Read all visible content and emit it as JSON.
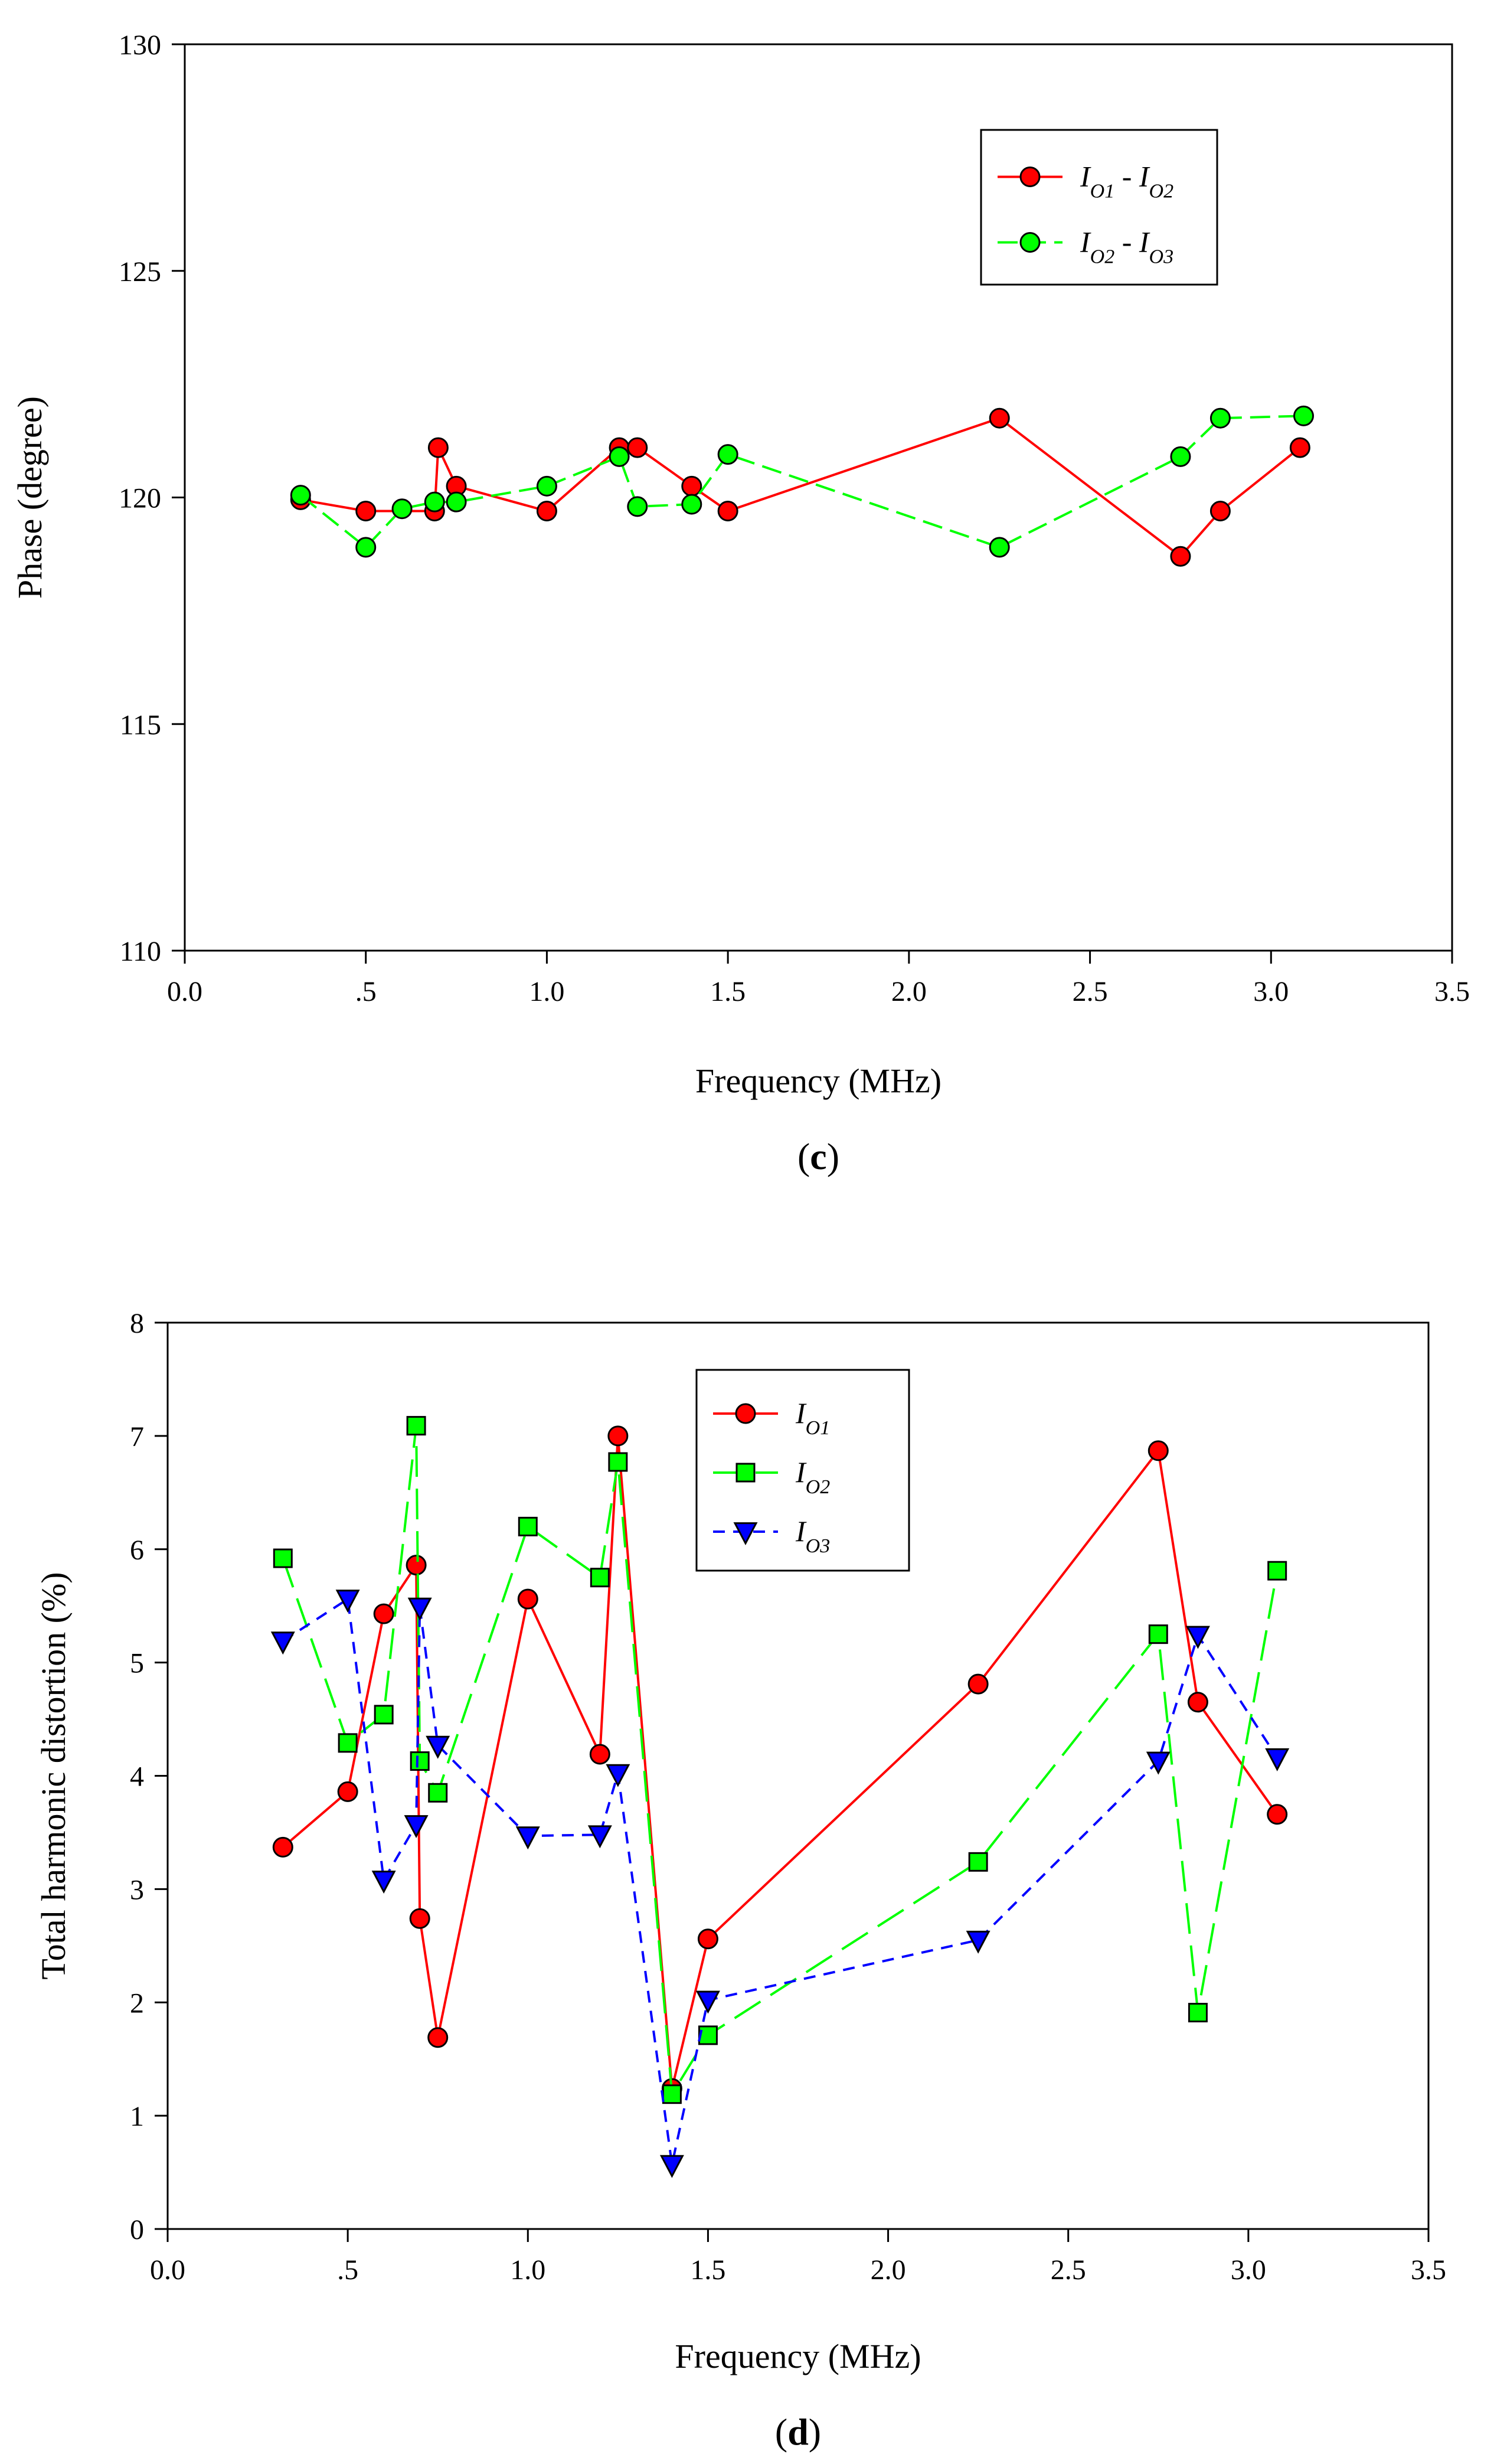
{
  "chart_data": [
    {
      "type": "line",
      "panel_label": "c",
      "xlabel": "Frequency (MHz)",
      "ylabel": "Phase (degree)",
      "xlim": [
        0,
        3.5
      ],
      "ylim": [
        110,
        130
      ],
      "xticks": [
        0,
        0.5,
        1,
        1.5,
        2,
        2.5,
        3,
        3.5
      ],
      "xtick_labels": [
        "0.0",
        ".5",
        "1.0",
        "1.5",
        "2.0",
        "2.5",
        "3.0",
        "3.5"
      ],
      "yticks": [
        110,
        115,
        120,
        125,
        130
      ],
      "ytick_labels": [
        "110",
        "115",
        "120",
        "125",
        "130"
      ],
      "grid": false,
      "legend_position": "top-right",
      "series": [
        {
          "name_main": "I",
          "name_sub": "O1",
          "name_sep": " - ",
          "name2_main": "I",
          "name2_sub": "O2",
          "color": "#ff0000",
          "marker": "circle",
          "dash": "solid",
          "x": [
            0.32,
            0.5,
            0.69,
            0.7,
            0.75,
            1.0,
            1.2,
            1.25,
            1.4,
            1.5,
            2.25,
            2.75,
            2.86,
            3.08
          ],
          "y": [
            119.95,
            119.7,
            119.7,
            121.1,
            120.25,
            119.7,
            121.1,
            121.1,
            120.25,
            119.7,
            121.75,
            118.7,
            119.7,
            121.1
          ]
        },
        {
          "name_main": "I",
          "name_sub": "O2",
          "name_sep": " - ",
          "name2_main": "I",
          "name2_sub": "O3",
          "color": "#00ff00",
          "marker": "circle",
          "dash": "dash",
          "x": [
            0.32,
            0.5,
            0.6,
            0.69,
            0.75,
            1.0,
            1.2,
            1.25,
            1.4,
            1.5,
            2.25,
            2.75,
            2.86,
            3.09
          ],
          "y": [
            120.05,
            118.9,
            119.75,
            119.9,
            119.9,
            120.25,
            120.9,
            119.8,
            119.85,
            120.95,
            118.9,
            120.9,
            121.75,
            121.8
          ]
        }
      ]
    },
    {
      "type": "line",
      "panel_label": "d",
      "xlabel": "Frequency (MHz)",
      "ylabel": "Total harmonic distortion (%)",
      "xlim": [
        0,
        3.5
      ],
      "ylim": [
        0,
        8
      ],
      "xticks": [
        0,
        0.5,
        1,
        1.5,
        2,
        2.5,
        3,
        3.5
      ],
      "xtick_labels": [
        "0.0",
        ".5",
        "1.0",
        "1.5",
        "2.0",
        "2.5",
        "3.0",
        "3.5"
      ],
      "yticks": [
        0,
        1,
        2,
        3,
        4,
        5,
        6,
        7,
        8
      ],
      "ytick_labels": [
        "0",
        "1",
        "2",
        "3",
        "4",
        "5",
        "6",
        "7",
        "8"
      ],
      "grid": false,
      "legend_position": "top-center",
      "series": [
        {
          "name_main": "I",
          "name_sub": "O1",
          "color": "#ff0000",
          "marker": "circle",
          "dash": "solid",
          "x": [
            0.32,
            0.5,
            0.6,
            0.69,
            0.7,
            0.75,
            1.0,
            1.2,
            1.25,
            1.4,
            1.5,
            2.25,
            2.75,
            2.86,
            3.08
          ],
          "y": [
            3.37,
            3.86,
            5.43,
            5.86,
            2.74,
            1.69,
            5.56,
            4.19,
            7.0,
            1.24,
            2.56,
            4.81,
            6.87,
            4.65,
            3.66
          ]
        },
        {
          "name_main": "I",
          "name_sub": "O2",
          "color": "#00ff00",
          "marker": "square",
          "dash": "longdash",
          "x": [
            0.32,
            0.5,
            0.6,
            0.69,
            0.7,
            0.75,
            1.0,
            1.2,
            1.25,
            1.4,
            1.5,
            2.25,
            2.75,
            2.86,
            3.08
          ],
          "y": [
            5.92,
            4.29,
            4.54,
            7.09,
            4.13,
            3.85,
            6.2,
            5.75,
            6.77,
            1.19,
            1.71,
            3.24,
            5.25,
            1.91,
            5.81
          ]
        },
        {
          "name_main": "I",
          "name_sub": "O3",
          "color": "#0000ff",
          "marker": "triangle-down",
          "dash": "shortdash",
          "x": [
            0.32,
            0.5,
            0.6,
            0.69,
            0.7,
            0.75,
            1.0,
            1.2,
            1.25,
            1.4,
            1.5,
            2.25,
            2.75,
            2.86,
            3.08
          ],
          "y": [
            5.19,
            5.56,
            3.08,
            3.57,
            5.49,
            4.27,
            3.47,
            3.48,
            4.02,
            0.57,
            2.02,
            2.55,
            4.13,
            5.24,
            4.16
          ]
        }
      ]
    }
  ]
}
